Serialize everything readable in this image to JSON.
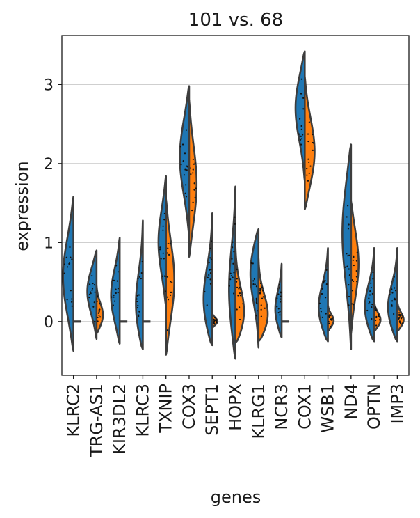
{
  "chart_data": {
    "type": "split-violin",
    "title": "101 vs. 68",
    "xlabel": "genes",
    "ylabel": "expression",
    "ylim": [
      -0.68,
      3.62
    ],
    "yticks": [
      0,
      1,
      2,
      3
    ],
    "grid": "horizontal",
    "colors": {
      "group_left": "#1f77b4",
      "group_right": "#ff7f0e",
      "outline": "#3d3d3d",
      "grid": "#c8c8c8"
    },
    "genes": [
      {
        "name": "KLRC2",
        "left": {
          "min": -0.37,
          "max": 1.58,
          "median": 0.5,
          "mode": 0.55,
          "width": 0.9
        },
        "right": {
          "flat": true
        }
      },
      {
        "name": "TRG-AS1",
        "left": {
          "min": -0.22,
          "max": 0.9,
          "median": 0.35,
          "mode": 0.4,
          "width": 0.8
        },
        "right": {
          "min": -0.15,
          "max": 0.45,
          "median": 0.05,
          "mode": 0.05,
          "width": 0.55
        }
      },
      {
        "name": "KIR3DL2",
        "left": {
          "min": -0.28,
          "max": 1.06,
          "median": 0.3,
          "mode": 0.3,
          "width": 0.75
        },
        "right": {
          "flat": true
        }
      },
      {
        "name": "KLRC3",
        "left": {
          "min": -0.35,
          "max": 1.28,
          "median": 0.25,
          "mode": 0.1,
          "width": 0.6
        },
        "right": {
          "flat": true
        }
      },
      {
        "name": "TXNIP",
        "left": {
          "min": 0.2,
          "max": 1.84,
          "median": 0.9,
          "mode": 1.0,
          "width": 0.65
        },
        "right": {
          "min": -0.42,
          "max": 1.55,
          "median": 0.55,
          "mode": 0.5,
          "width": 0.72
        }
      },
      {
        "name": "COX3",
        "left": {
          "min": 1.1,
          "max": 2.98,
          "median": 2.05,
          "mode": 2.1,
          "width": 0.8
        },
        "right": {
          "min": 0.82,
          "max": 2.8,
          "median": 1.75,
          "mode": 1.7,
          "width": 0.65
        }
      },
      {
        "name": "SEPT1",
        "left": {
          "min": -0.3,
          "max": 1.37,
          "median": 0.25,
          "mode": 0.15,
          "width": 0.75
        },
        "right": {
          "min": -0.08,
          "max": 0.1,
          "median": 0.0,
          "mode": 0.0,
          "width": 0.45
        }
      },
      {
        "name": "HOPX",
        "left": {
          "min": -0.47,
          "max": 1.71,
          "median": 0.5,
          "mode": 0.3,
          "width": 0.55
        },
        "right": {
          "min": -0.27,
          "max": 1.0,
          "median": 0.1,
          "mode": 0.0,
          "width": 0.75
        }
      },
      {
        "name": "KLRG1",
        "left": {
          "min": -0.33,
          "max": 1.17,
          "median": 0.55,
          "mode": 0.7,
          "width": 0.7
        },
        "right": {
          "min": -0.25,
          "max": 0.8,
          "median": 0.1,
          "mode": 0.0,
          "width": 0.8
        }
      },
      {
        "name": "NCR3",
        "left": {
          "min": -0.2,
          "max": 0.73,
          "median": 0.15,
          "mode": 0.1,
          "width": 0.55
        },
        "right": {
          "flat": true
        }
      },
      {
        "name": "COX1",
        "left": {
          "min": 1.78,
          "max": 3.42,
          "median": 2.6,
          "mode": 2.75,
          "width": 0.8
        },
        "right": {
          "min": 1.42,
          "max": 3.1,
          "median": 2.15,
          "mode": 2.1,
          "width": 0.85
        }
      },
      {
        "name": "WSB1",
        "left": {
          "min": -0.25,
          "max": 0.93,
          "median": 0.25,
          "mode": 0.1,
          "width": 0.8
        },
        "right": {
          "min": -0.12,
          "max": 0.2,
          "median": 0.02,
          "mode": 0.0,
          "width": 0.5
        }
      },
      {
        "name": "ND4",
        "left": {
          "min": -0.35,
          "max": 2.24,
          "median": 1.05,
          "mode": 1.2,
          "width": 0.75
        },
        "right": {
          "min": -0.15,
          "max": 1.52,
          "median": 0.7,
          "mode": 0.75,
          "width": 0.65
        }
      },
      {
        "name": "OPTN",
        "left": {
          "min": -0.25,
          "max": 0.93,
          "median": 0.2,
          "mode": 0.1,
          "width": 0.8
        },
        "right": {
          "min": -0.12,
          "max": 0.25,
          "median": 0.02,
          "mode": 0.0,
          "width": 0.55
        }
      },
      {
        "name": "IMP3",
        "left": {
          "min": -0.25,
          "max": 0.93,
          "median": 0.2,
          "mode": 0.1,
          "width": 0.8
        },
        "right": {
          "min": -0.12,
          "max": 0.25,
          "median": 0.02,
          "mode": 0.0,
          "width": 0.55
        }
      }
    ]
  }
}
